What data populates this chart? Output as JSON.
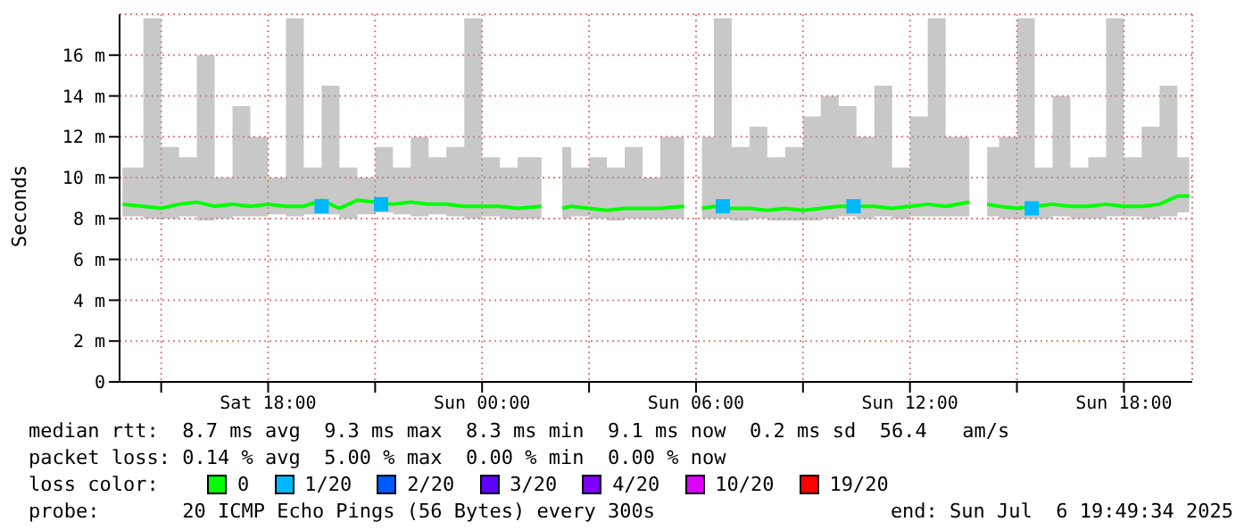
{
  "chart_data": {
    "type": "line",
    "ylabel": "Seconds",
    "legend_title": "loss color:",
    "legend": "bottom",
    "grid": true,
    "xlim": [
      "2025-07-05T13:50",
      "2025-07-06T19:55"
    ],
    "xticks": [
      {
        "value": "2025-07-05T15:00",
        "label": null
      },
      {
        "value": "2025-07-05T18:00",
        "label": "Sat 18:00"
      },
      {
        "value": "2025-07-05T21:00",
        "label": null
      },
      {
        "value": "2025-07-06T00:00",
        "label": "Sun 00:00"
      },
      {
        "value": "2025-07-06T03:00",
        "label": null
      },
      {
        "value": "2025-07-06T06:00",
        "label": "Sun 06:00"
      },
      {
        "value": "2025-07-06T09:00",
        "label": null
      },
      {
        "value": "2025-07-06T12:00",
        "label": "Sun 12:00"
      },
      {
        "value": "2025-07-06T15:00",
        "label": null
      },
      {
        "value": "2025-07-06T18:00",
        "label": "Sun 18:00"
      }
    ],
    "ylim": [
      0,
      18
    ],
    "yticks": [
      0,
      {
        "value": 2,
        "label": "2 m"
      },
      {
        "value": 4,
        "label": "4 m"
      },
      {
        "value": 6,
        "label": "6 m"
      },
      {
        "value": 8,
        "label": "8 m"
      },
      {
        "value": 10,
        "label": "10 m"
      },
      {
        "value": 12,
        "label": "12 m"
      },
      {
        "value": 14,
        "label": "14 m"
      },
      {
        "value": 16,
        "label": "16 m"
      }
    ],
    "annotations": [
      "median rtt:  8.7 ms avg  9.3 ms max  8.3 ms min  9.1 ms now  0.2 ms sd  56.4   am/s",
      "packet loss: 0.14 % avg  5.00 % max  0.00 % min  0.00 % now",
      "probe:       20 ICMP Echo Pings (56 Bytes) every 300s",
      "end: Sun Jul  6 19:49:34 2025"
    ],
    "series": [
      {
        "name": "0",
        "color": "#00ff00",
        "x": [
          "2025-07-05T13:55",
          "2025-07-05T14:30",
          "2025-07-05T15:00",
          "2025-07-05T15:30",
          "2025-07-05T16:00",
          "2025-07-05T16:30",
          "2025-07-05T17:00",
          "2025-07-05T17:30",
          "2025-07-05T18:00",
          "2025-07-05T18:30",
          "2025-07-05T19:00",
          "2025-07-05T19:30",
          "2025-07-05T20:00",
          "2025-07-05T20:30",
          "2025-07-05T21:00",
          "2025-07-05T21:30",
          "2025-07-05T22:00",
          "2025-07-05T22:30",
          "2025-07-05T23:00",
          "2025-07-05T23:30",
          "2025-07-06T00:00",
          "2025-07-06T00:30",
          "2025-07-06T01:00",
          "2025-07-06T01:40",
          "2025-07-06T02:00",
          "2025-07-06T02:15",
          "2025-07-06T02:30",
          "2025-07-06T03:00",
          "2025-07-06T03:30",
          "2025-07-06T04:00",
          "2025-07-06T04:30",
          "2025-07-06T05:00",
          "2025-07-06T05:40",
          "2025-07-06T05:55",
          "2025-07-06T06:10",
          "2025-07-06T06:30",
          "2025-07-06T07:00",
          "2025-07-06T07:30",
          "2025-07-06T08:00",
          "2025-07-06T08:30",
          "2025-07-06T09:00",
          "2025-07-06T09:30",
          "2025-07-06T10:00",
          "2025-07-06T10:30",
          "2025-07-06T11:00",
          "2025-07-06T11:30",
          "2025-07-06T12:00",
          "2025-07-06T12:30",
          "2025-07-06T13:00",
          "2025-07-06T13:40",
          "2025-07-06T13:55",
          "2025-07-06T14:10",
          "2025-07-06T14:30",
          "2025-07-06T15:00",
          "2025-07-06T15:30",
          "2025-07-06T16:00",
          "2025-07-06T16:30",
          "2025-07-06T17:00",
          "2025-07-06T17:30",
          "2025-07-06T18:00",
          "2025-07-06T18:30",
          "2025-07-06T19:00",
          "2025-07-06T19:30",
          "2025-07-06T19:50"
        ],
        "values": [
          8.7,
          8.6,
          8.5,
          8.7,
          8.8,
          8.6,
          8.7,
          8.6,
          8.7,
          8.6,
          8.6,
          8.9,
          8.5,
          8.9,
          8.8,
          8.7,
          8.8,
          8.7,
          8.7,
          8.6,
          8.6,
          8.6,
          8.5,
          8.6,
          null,
          8.5,
          8.6,
          8.5,
          8.4,
          8.5,
          8.5,
          8.5,
          8.6,
          null,
          8.5,
          8.6,
          8.5,
          8.5,
          8.4,
          8.5,
          8.4,
          8.5,
          8.6,
          8.6,
          8.6,
          8.5,
          8.6,
          8.7,
          8.6,
          8.8,
          null,
          8.7,
          8.6,
          8.5,
          8.6,
          8.7,
          8.6,
          8.6,
          8.7,
          8.6,
          8.6,
          8.7,
          9.1,
          9.1
        ],
        "lower": [
          8.1,
          8.0,
          8.0,
          8.1,
          7.9,
          8.0,
          8.1,
          8.1,
          8.2,
          8.1,
          8.2,
          8.2,
          8.0,
          8.2,
          8.3,
          8.2,
          8.1,
          8.2,
          8.1,
          8.0,
          8.1,
          8.0,
          8.0,
          8.0,
          null,
          8.0,
          8.1,
          8.0,
          7.9,
          8.0,
          8.0,
          8.0,
          8.1,
          null,
          8.0,
          8.0,
          7.9,
          8.0,
          7.9,
          7.9,
          7.9,
          8.0,
          8.1,
          8.0,
          8.1,
          8.0,
          8.1,
          8.1,
          8.1,
          8.2,
          null,
          8.1,
          8.0,
          8.0,
          8.0,
          8.1,
          8.0,
          8.0,
          8.1,
          8.1,
          8.0,
          8.1,
          8.3,
          8.4
        ],
        "upper": [
          10.5,
          17.8,
          11.5,
          11.0,
          16.0,
          10.0,
          13.5,
          12.0,
          10.0,
          17.8,
          10.5,
          14.5,
          10.5,
          10.0,
          11.5,
          10.5,
          12.0,
          11.0,
          11.5,
          17.8,
          11.0,
          10.5,
          11.0,
          11.5,
          null,
          11.5,
          10.5,
          11.0,
          10.5,
          11.5,
          10.0,
          12.0,
          17.8,
          null,
          12.0,
          17.8,
          11.5,
          12.5,
          11.0,
          11.5,
          13.0,
          14.0,
          13.5,
          12.0,
          14.5,
          10.5,
          13.0,
          17.8,
          12.0,
          17.8,
          null,
          11.5,
          12.0,
          17.8,
          10.5,
          14.0,
          10.5,
          11.0,
          17.8,
          11.0,
          12.5,
          14.5,
          11.0,
          10.5
        ]
      },
      {
        "name": "1/20",
        "type": "scatter",
        "marker": "square",
        "color": "#00b8ff",
        "x": [
          "2025-07-05T19:30",
          "2025-07-05T21:10",
          "2025-07-06T06:45",
          "2025-07-06T10:25",
          "2025-07-06T15:25"
        ],
        "values": [
          8.6,
          8.7,
          8.6,
          8.6,
          8.5
        ]
      },
      {
        "name": "2/20",
        "type": "scatter",
        "color": "#0059ff"
      },
      {
        "name": "3/20",
        "type": "scatter",
        "color": "#5e00ff"
      },
      {
        "name": "4/20",
        "type": "scatter",
        "color": "#7e00ff"
      },
      {
        "name": "10/20",
        "type": "scatter",
        "color": "#dd00ff"
      },
      {
        "name": "19/20",
        "type": "scatter",
        "color": "#ff0000"
      }
    ]
  }
}
